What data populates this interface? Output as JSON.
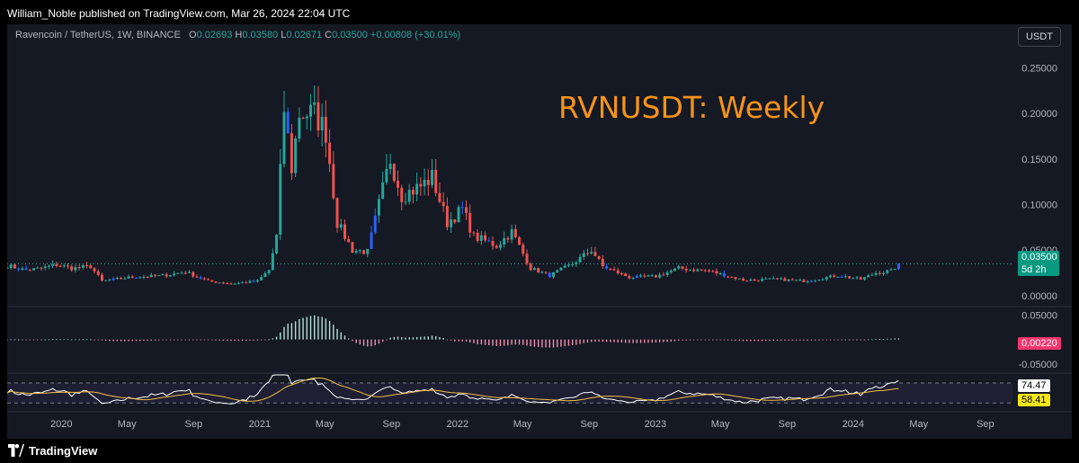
{
  "header": {
    "text": "William_Noble published on TradingView.com, Mar 26, 2024 22:04 UTC"
  },
  "legend": {
    "symbol": "Ravencoin / TetherUS, 1W, BINANCE",
    "o_label": "O",
    "o_value": "0.02693",
    "h_label": "H",
    "h_value": "0.03580",
    "l_label": "L",
    "l_value": "0.02671",
    "c_label": "C",
    "c_value": "0.03500",
    "change": "+0.00808 (+30.01%)"
  },
  "currency_button": "USDT",
  "annotation": "RVNUSDT: Weekly",
  "price_tag": {
    "value": "0.03500",
    "countdown": "5d 2h"
  },
  "macd_tag": "0.00220",
  "rsi_tags": {
    "rsi": "74.47",
    "ma": "58.41"
  },
  "footer": {
    "brand": "TradingView"
  },
  "colors": {
    "up": "#26a69a",
    "down": "#ef5350",
    "highlight": "#2962ff",
    "title": "#f7931a",
    "rsi_ma": "#f0c040"
  },
  "chart_data": [
    {
      "type": "candlestick",
      "title": "Ravencoin / TetherUS, 1W, BINANCE",
      "ylim": [
        -0.01,
        0.28
      ],
      "y_ticks": [
        0.0,
        0.05,
        0.1,
        0.15,
        0.2,
        0.25
      ],
      "y_tick_labels": [
        "0.00000",
        "0.05000",
        "0.10000",
        "0.15000",
        "0.20000",
        "0.25000"
      ],
      "x_ticks": [
        {
          "date": "2020-01-01",
          "label": "2020"
        },
        {
          "date": "2020-05-01",
          "label": "May"
        },
        {
          "date": "2020-09-01",
          "label": "Sep"
        },
        {
          "date": "2021-01-01",
          "label": "2021"
        },
        {
          "date": "2021-05-01",
          "label": "May"
        },
        {
          "date": "2021-09-01",
          "label": "Sep"
        },
        {
          "date": "2022-01-01",
          "label": "2022"
        },
        {
          "date": "2022-05-01",
          "label": "May"
        },
        {
          "date": "2022-09-01",
          "label": "Sep"
        },
        {
          "date": "2023-01-01",
          "label": "2023"
        },
        {
          "date": "2023-05-01",
          "label": "May"
        },
        {
          "date": "2023-09-01",
          "label": "Sep"
        },
        {
          "date": "2024-01-01",
          "label": "2024"
        },
        {
          "date": "2024-05-01",
          "label": "May"
        },
        {
          "date": "2024-09-01",
          "label": "Sep"
        }
      ],
      "x_start": "2019-09-23",
      "x_end": "2024-10-21",
      "last_close": 0.035,
      "anchors": [
        {
          "date": "2019-09-23",
          "close": 0.033
        },
        {
          "date": "2019-10-28",
          "close": 0.028
        },
        {
          "date": "2019-11-25",
          "close": 0.03
        },
        {
          "date": "2019-12-23",
          "close": 0.034
        },
        {
          "date": "2020-01-20",
          "close": 0.03
        },
        {
          "date": "2020-02-24",
          "close": 0.032
        },
        {
          "date": "2020-03-16",
          "close": 0.016
        },
        {
          "date": "2020-05-04",
          "close": 0.02
        },
        {
          "date": "2020-07-06",
          "close": 0.022
        },
        {
          "date": "2020-08-17",
          "close": 0.026
        },
        {
          "date": "2020-09-28",
          "close": 0.016
        },
        {
          "date": "2020-11-09",
          "close": 0.013
        },
        {
          "date": "2020-12-28",
          "close": 0.016
        },
        {
          "date": "2021-01-18",
          "close": 0.028
        },
        {
          "date": "2021-02-01",
          "close": 0.065
        },
        {
          "date": "2021-02-15",
          "close": 0.205
        },
        {
          "date": "2021-03-01",
          "close": 0.14
        },
        {
          "date": "2021-03-15",
          "close": 0.2
        },
        {
          "date": "2021-04-12",
          "close": 0.2
        },
        {
          "date": "2021-05-03",
          "close": 0.18
        },
        {
          "date": "2021-05-24",
          "close": 0.08
        },
        {
          "date": "2021-06-21",
          "close": 0.05
        },
        {
          "date": "2021-07-19",
          "close": 0.048
        },
        {
          "date": "2021-08-09",
          "close": 0.1
        },
        {
          "date": "2021-08-30",
          "close": 0.15
        },
        {
          "date": "2021-09-20",
          "close": 0.11
        },
        {
          "date": "2021-10-25",
          "close": 0.12
        },
        {
          "date": "2021-11-15",
          "close": 0.13
        },
        {
          "date": "2021-12-13",
          "close": 0.08
        },
        {
          "date": "2022-01-10",
          "close": 0.095
        },
        {
          "date": "2022-01-31",
          "close": 0.065
        },
        {
          "date": "2022-03-14",
          "close": 0.055
        },
        {
          "date": "2022-04-11",
          "close": 0.07
        },
        {
          "date": "2022-05-16",
          "close": 0.03
        },
        {
          "date": "2022-06-20",
          "close": 0.022
        },
        {
          "date": "2022-08-01",
          "close": 0.035
        },
        {
          "date": "2022-09-05",
          "close": 0.05
        },
        {
          "date": "2022-09-26",
          "close": 0.032
        },
        {
          "date": "2022-11-14",
          "close": 0.02
        },
        {
          "date": "2023-01-02",
          "close": 0.021
        },
        {
          "date": "2023-02-13",
          "close": 0.03
        },
        {
          "date": "2023-04-10",
          "close": 0.027
        },
        {
          "date": "2023-06-12",
          "close": 0.017
        },
        {
          "date": "2023-08-14",
          "close": 0.018
        },
        {
          "date": "2023-10-02",
          "close": 0.016
        },
        {
          "date": "2023-12-04",
          "close": 0.022
        },
        {
          "date": "2024-01-15",
          "close": 0.018
        },
        {
          "date": "2024-02-12",
          "close": 0.025
        },
        {
          "date": "2024-03-11",
          "close": 0.027
        },
        {
          "date": "2024-03-25",
          "close": 0.035
        }
      ]
    },
    {
      "type": "histogram",
      "title": "MACD",
      "ylim": [
        -0.065,
        0.06
      ],
      "y_tick_labels": [
        "0.05000",
        "-0.05000"
      ],
      "y_ticks": [
        0.05,
        -0.05
      ],
      "last_value": 0.0022
    },
    {
      "type": "line",
      "title": "RSI",
      "ylim": [
        18,
        86
      ],
      "bands": [
        30,
        70
      ],
      "series": [
        {
          "name": "RSI",
          "last": 74.47
        },
        {
          "name": "RSI MA",
          "last": 58.41
        }
      ]
    }
  ]
}
